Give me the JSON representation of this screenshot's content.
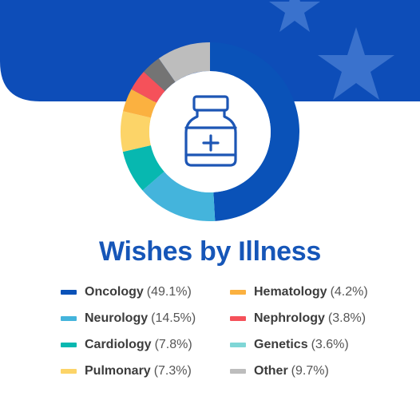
{
  "colors": {
    "banner": "#0d4db8",
    "star": "#3a72cd",
    "title": "#1656b8",
    "icon": "#1d56b5"
  },
  "icon": "medicine-bottle-icon",
  "chart_data": {
    "type": "pie",
    "donut": true,
    "title": "Wishes by Illness",
    "legend_placement": "bottom",
    "categories": [
      "Oncology",
      "Neurology",
      "Cardiology",
      "Pulmonary",
      "Hematology",
      "Nephrology",
      "Genetics",
      "Other"
    ],
    "values": [
      49.1,
      14.5,
      7.8,
      7.3,
      4.2,
      3.8,
      3.6,
      9.7
    ],
    "series_colors": [
      "#0a52b8",
      "#44b4dc",
      "#07b8b0",
      "#fcd468",
      "#fbb140",
      "#f5515a",
      "#747474",
      "#bdbdbd"
    ],
    "legend_colors": [
      "#0a52b8",
      "#44b4dc",
      "#07b8b0",
      "#fcd468",
      "#fbb140",
      "#f5515a",
      "#7fd6d6",
      "#bdbdbd"
    ],
    "legend": [
      {
        "name": "Oncology",
        "pct": "(49.1%)"
      },
      {
        "name": "Neurology",
        "pct": "(14.5%)"
      },
      {
        "name": "Cardiology",
        "pct": "(7.8%)"
      },
      {
        "name": "Pulmonary",
        "pct": "(7.3%)"
      },
      {
        "name": "Hematology",
        "pct": "(4.2%)"
      },
      {
        "name": "Nephrology",
        "pct": "(3.8%)"
      },
      {
        "name": "Genetics",
        "pct": "(3.6%)"
      },
      {
        "name": "Other",
        "pct": "(9.7%)"
      }
    ]
  }
}
